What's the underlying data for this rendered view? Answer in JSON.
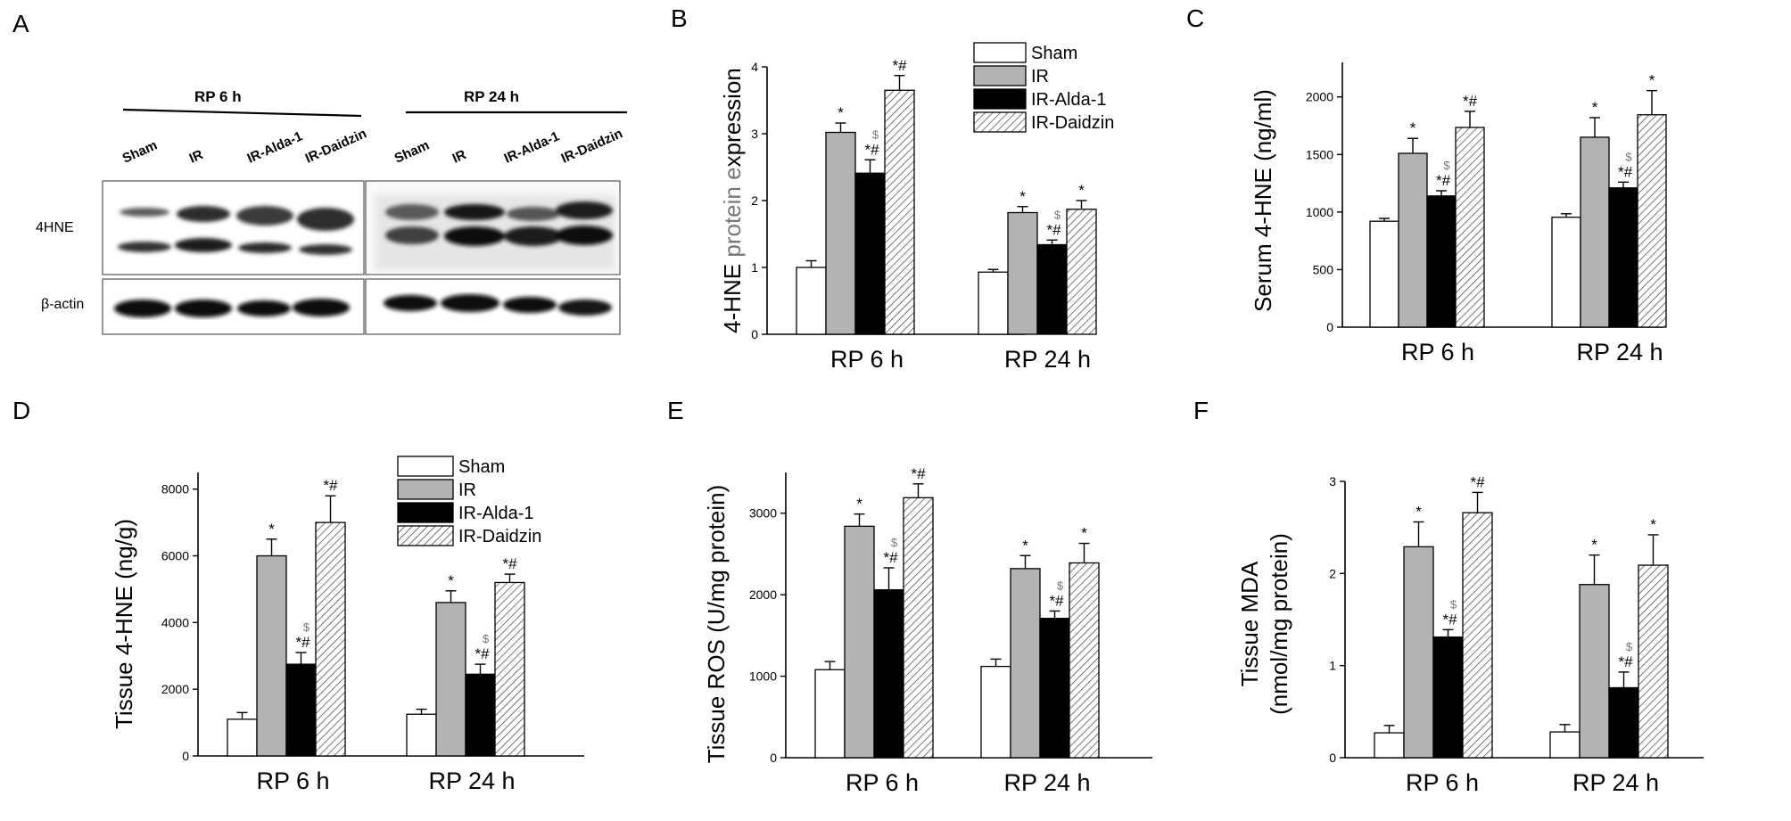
{
  "figure": {
    "panel_letters": [
      "A",
      "B",
      "C",
      "D",
      "E",
      "F"
    ],
    "colors": {
      "Sham": "#ffffff",
      "IR": "#b3b3b3",
      "IR-Alda-1": "#000000",
      "IR-Daidzin": "hatched"
    },
    "legend": [
      "Sham",
      "IR",
      "IR-Alda-1",
      "IR-Daidzin"
    ]
  },
  "blot": {
    "headers": [
      "RP 6 h",
      "RP 24 h"
    ],
    "lanes_left": [
      "Sham",
      "IR",
      "IR-Alda-1",
      "IR-Daidzin"
    ],
    "lanes_right": [
      "Sham",
      "IR",
      "IR-Alda-1",
      "IR-Daidzin"
    ],
    "row_labels": [
      "4HNE",
      "β-actin"
    ]
  },
  "chart_data": [
    {
      "panel": "B",
      "type": "bar",
      "categories": [
        "RP 6 h",
        "RP 24 h"
      ],
      "ylabel_parts": [
        "4-HNE ",
        "protein ",
        "e",
        "xpression"
      ],
      "ylim": [
        0,
        4
      ],
      "yticks": [
        0,
        1,
        2,
        3,
        4
      ],
      "series": [
        {
          "name": "Sham",
          "values": [
            1.0,
            0.93
          ],
          "errors": [
            0.1,
            0.04
          ],
          "annotations": [
            "",
            ""
          ]
        },
        {
          "name": "IR",
          "values": [
            3.02,
            1.82
          ],
          "errors": [
            0.14,
            0.09
          ],
          "annotations": [
            "*",
            "*"
          ]
        },
        {
          "name": "IR-Alda-1",
          "values": [
            2.41,
            1.34
          ],
          "errors": [
            0.2,
            0.07
          ],
          "annotations": [
            "$|*#",
            "$|*#"
          ]
        },
        {
          "name": "IR-Daidzin",
          "values": [
            3.65,
            1.87
          ],
          "errors": [
            0.22,
            0.13
          ],
          "annotations": [
            "*#",
            "*"
          ]
        }
      ],
      "legend": true
    },
    {
      "panel": "C",
      "type": "bar",
      "categories": [
        "RP 6 h",
        "RP 24 h"
      ],
      "ylabel_parts": [
        "Serum 4-HNE  (ng/ml)"
      ],
      "ylim": [
        0,
        2300
      ],
      "yticks": [
        0,
        500,
        1000,
        1500,
        2000
      ],
      "series": [
        {
          "name": "Sham",
          "values": [
            920,
            955
          ],
          "errors": [
            25,
            30
          ],
          "annotations": [
            "",
            ""
          ]
        },
        {
          "name": "IR",
          "values": [
            1510,
            1650
          ],
          "errors": [
            130,
            170
          ],
          "annotations": [
            "*",
            "*"
          ]
        },
        {
          "name": "IR-Alda-1",
          "values": [
            1140,
            1210
          ],
          "errors": [
            45,
            50
          ],
          "annotations": [
            "$|*#",
            "$|*#"
          ]
        },
        {
          "name": "IR-Daidzin",
          "values": [
            1735,
            1845
          ],
          "errors": [
            140,
            210
          ],
          "annotations": [
            "*#",
            "*"
          ]
        }
      ],
      "legend": false
    },
    {
      "panel": "D",
      "type": "bar",
      "categories": [
        "RP 6 h",
        "RP 24 h"
      ],
      "ylabel_parts": [
        "Tissue 4-HNE  (ng/g)"
      ],
      "ylim": [
        0,
        8500
      ],
      "yticks": [
        0,
        2000,
        4000,
        6000,
        8000
      ],
      "series": [
        {
          "name": "Sham",
          "values": [
            1100,
            1250
          ],
          "errors": [
            200,
            150
          ],
          "annotations": [
            "",
            ""
          ]
        },
        {
          "name": "IR",
          "values": [
            6000,
            4600
          ],
          "errors": [
            500,
            350
          ],
          "annotations": [
            "*",
            "*"
          ]
        },
        {
          "name": "IR-Alda-1",
          "values": [
            2750,
            2450
          ],
          "errors": [
            350,
            300
          ],
          "annotations": [
            "$|*#",
            "$|*#"
          ]
        },
        {
          "name": "IR-Daidzin",
          "values": [
            7000,
            5200
          ],
          "errors": [
            800,
            250
          ],
          "annotations": [
            "*#",
            "*#"
          ]
        }
      ],
      "legend": true
    },
    {
      "panel": "E",
      "type": "bar",
      "categories": [
        "RP 6 h",
        "RP 24 h"
      ],
      "ylabel_parts": [
        "Tissue ROS (U/mg protein)"
      ],
      "ylim": [
        0,
        3500
      ],
      "yticks": [
        0,
        1000,
        2000,
        3000
      ],
      "series": [
        {
          "name": "Sham",
          "values": [
            1080,
            1120
          ],
          "errors": [
            100,
            90
          ],
          "annotations": [
            "",
            ""
          ]
        },
        {
          "name": "IR",
          "values": [
            2840,
            2320
          ],
          "errors": [
            150,
            160
          ],
          "annotations": [
            "*",
            "*"
          ]
        },
        {
          "name": "IR-Alda-1",
          "values": [
            2060,
            1710
          ],
          "errors": [
            270,
            90
          ],
          "annotations": [
            "$|*#",
            "$|*#"
          ]
        },
        {
          "name": "IR-Daidzin",
          "values": [
            3190,
            2390
          ],
          "errors": [
            170,
            240
          ],
          "annotations": [
            "*#",
            "*"
          ]
        }
      ],
      "legend": false
    },
    {
      "panel": "F",
      "type": "bar",
      "categories": [
        "RP 6 h",
        "RP 24 h"
      ],
      "ylabel_parts": [
        "Tissue MDA",
        "(nmol/mg protein)"
      ],
      "ylim": [
        0,
        3
      ],
      "yticks": [
        0,
        1,
        2,
        3
      ],
      "series": [
        {
          "name": "Sham",
          "values": [
            0.27,
            0.28
          ],
          "errors": [
            0.08,
            0.08
          ],
          "annotations": [
            "",
            ""
          ]
        },
        {
          "name": "IR",
          "values": [
            2.29,
            1.88
          ],
          "errors": [
            0.27,
            0.32
          ],
          "annotations": [
            "*",
            "*"
          ]
        },
        {
          "name": "IR-Alda-1",
          "values": [
            1.31,
            0.76
          ],
          "errors": [
            0.08,
            0.17
          ],
          "annotations": [
            "$|*#",
            "$|*#"
          ]
        },
        {
          "name": "IR-Daidzin",
          "values": [
            2.66,
            2.09
          ],
          "errors": [
            0.22,
            0.33
          ],
          "annotations": [
            "*#",
            "*"
          ]
        }
      ],
      "legend": false
    }
  ]
}
